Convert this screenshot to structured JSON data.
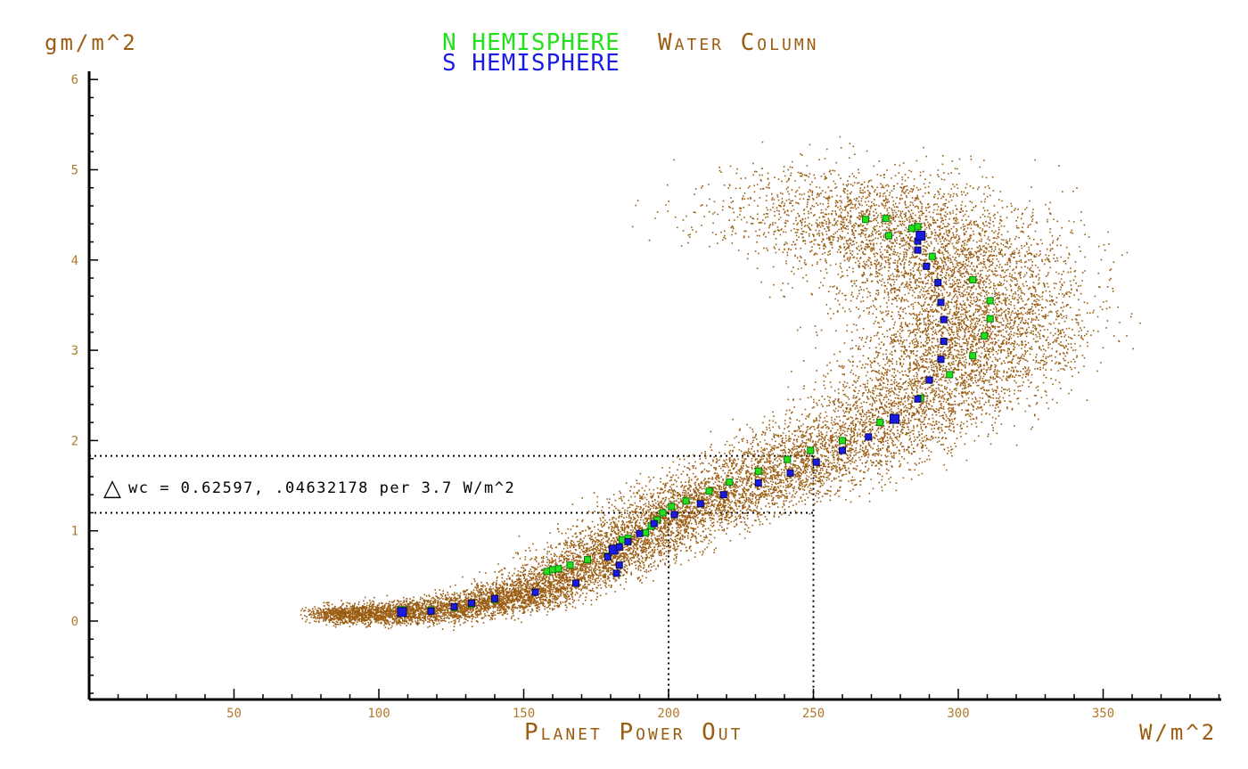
{
  "colors": {
    "brown": "#9a5d12",
    "green": "#22e01a",
    "blue": "#1a1ae6",
    "axis": "#000000",
    "tick_text": "#b07a2a",
    "navy": "#0a0a50"
  },
  "chart_data": {
    "type": "scatter",
    "title_parts": {
      "n_hemisphere": "N HEMISPHERE",
      "water_column": "Water Column",
      "s_hemisphere": "S HEMISPHERE"
    },
    "ylabel": "gm/m^2",
    "xlabel": "Planet Power Out",
    "xunit": "W/m^2",
    "xlim": [
      0,
      390
    ],
    "ylim": [
      -0.9,
      6.1
    ],
    "x_ticks": [
      50,
      100,
      150,
      200,
      250,
      300,
      350
    ],
    "y_ticks": [
      0,
      1,
      2,
      3,
      4,
      5,
      6
    ],
    "annotation": "wc = 0.62597, .04632178 per 3.7 W/m^2",
    "annotation_symbol": "△",
    "reference_lines": {
      "horizontal_y": [
        1.83,
        1.2
      ],
      "vertical_x": [
        200,
        250
      ]
    },
    "series": [
      {
        "name": "N HEMISPHERE",
        "color": "#22e01a",
        "points": [
          [
            108,
            0.11
          ],
          [
            118,
            0.12
          ],
          [
            126,
            0.15
          ],
          [
            132,
            0.19
          ],
          [
            140,
            0.24
          ],
          [
            154,
            0.32
          ],
          [
            158,
            0.55
          ],
          [
            160,
            0.57
          ],
          [
            162,
            0.58
          ],
          [
            166,
            0.62
          ],
          [
            172,
            0.68
          ],
          [
            179,
            0.72
          ],
          [
            184,
            0.9
          ],
          [
            186,
            0.92
          ],
          [
            192,
            0.98
          ],
          [
            194,
            1.05
          ],
          [
            196,
            1.12
          ],
          [
            198,
            1.2
          ],
          [
            201,
            1.27
          ],
          [
            206,
            1.33
          ],
          [
            214,
            1.44
          ],
          [
            221,
            1.54
          ],
          [
            231,
            1.66
          ],
          [
            241,
            1.79
          ],
          [
            249,
            1.89
          ],
          [
            260,
            2.0
          ],
          [
            273,
            2.2
          ],
          [
            287,
            2.47
          ],
          [
            297,
            2.73
          ],
          [
            305,
            2.94
          ],
          [
            309,
            3.16
          ],
          [
            311,
            3.35
          ],
          [
            311,
            3.55
          ],
          [
            305,
            3.78
          ],
          [
            291,
            4.04
          ],
          [
            284,
            4.35
          ],
          [
            286,
            4.37
          ],
          [
            276,
            4.27
          ],
          [
            275,
            4.46
          ],
          [
            268,
            4.45
          ]
        ]
      },
      {
        "name": "S HEMISPHERE",
        "color": "#1a1ae6",
        "points": [
          [
            108,
            0.1
          ],
          [
            118,
            0.11
          ],
          [
            126,
            0.16
          ],
          [
            132,
            0.2
          ],
          [
            140,
            0.25
          ],
          [
            154,
            0.32
          ],
          [
            168,
            0.42
          ],
          [
            182,
            0.53
          ],
          [
            183,
            0.62
          ],
          [
            179,
            0.71
          ],
          [
            181,
            0.79
          ],
          [
            183,
            0.82
          ],
          [
            186,
            0.88
          ],
          [
            190,
            0.97
          ],
          [
            195,
            1.08
          ],
          [
            202,
            1.18
          ],
          [
            211,
            1.3
          ],
          [
            219,
            1.4
          ],
          [
            231,
            1.53
          ],
          [
            242,
            1.64
          ],
          [
            251,
            1.76
          ],
          [
            260,
            1.89
          ],
          [
            269,
            2.04
          ],
          [
            278,
            2.24
          ],
          [
            286,
            2.46
          ],
          [
            290,
            2.67
          ],
          [
            294,
            2.9
          ],
          [
            295,
            3.1
          ],
          [
            295,
            3.34
          ],
          [
            294,
            3.53
          ],
          [
            293,
            3.75
          ],
          [
            289,
            3.93
          ],
          [
            286,
            4.11
          ],
          [
            286,
            4.21
          ],
          [
            287,
            4.27
          ]
        ]
      },
      {
        "name": "Water Column",
        "color": "#9a5d12",
        "note_points": "dense cloud of ~26000 individual samples along the curve"
      }
    ]
  }
}
